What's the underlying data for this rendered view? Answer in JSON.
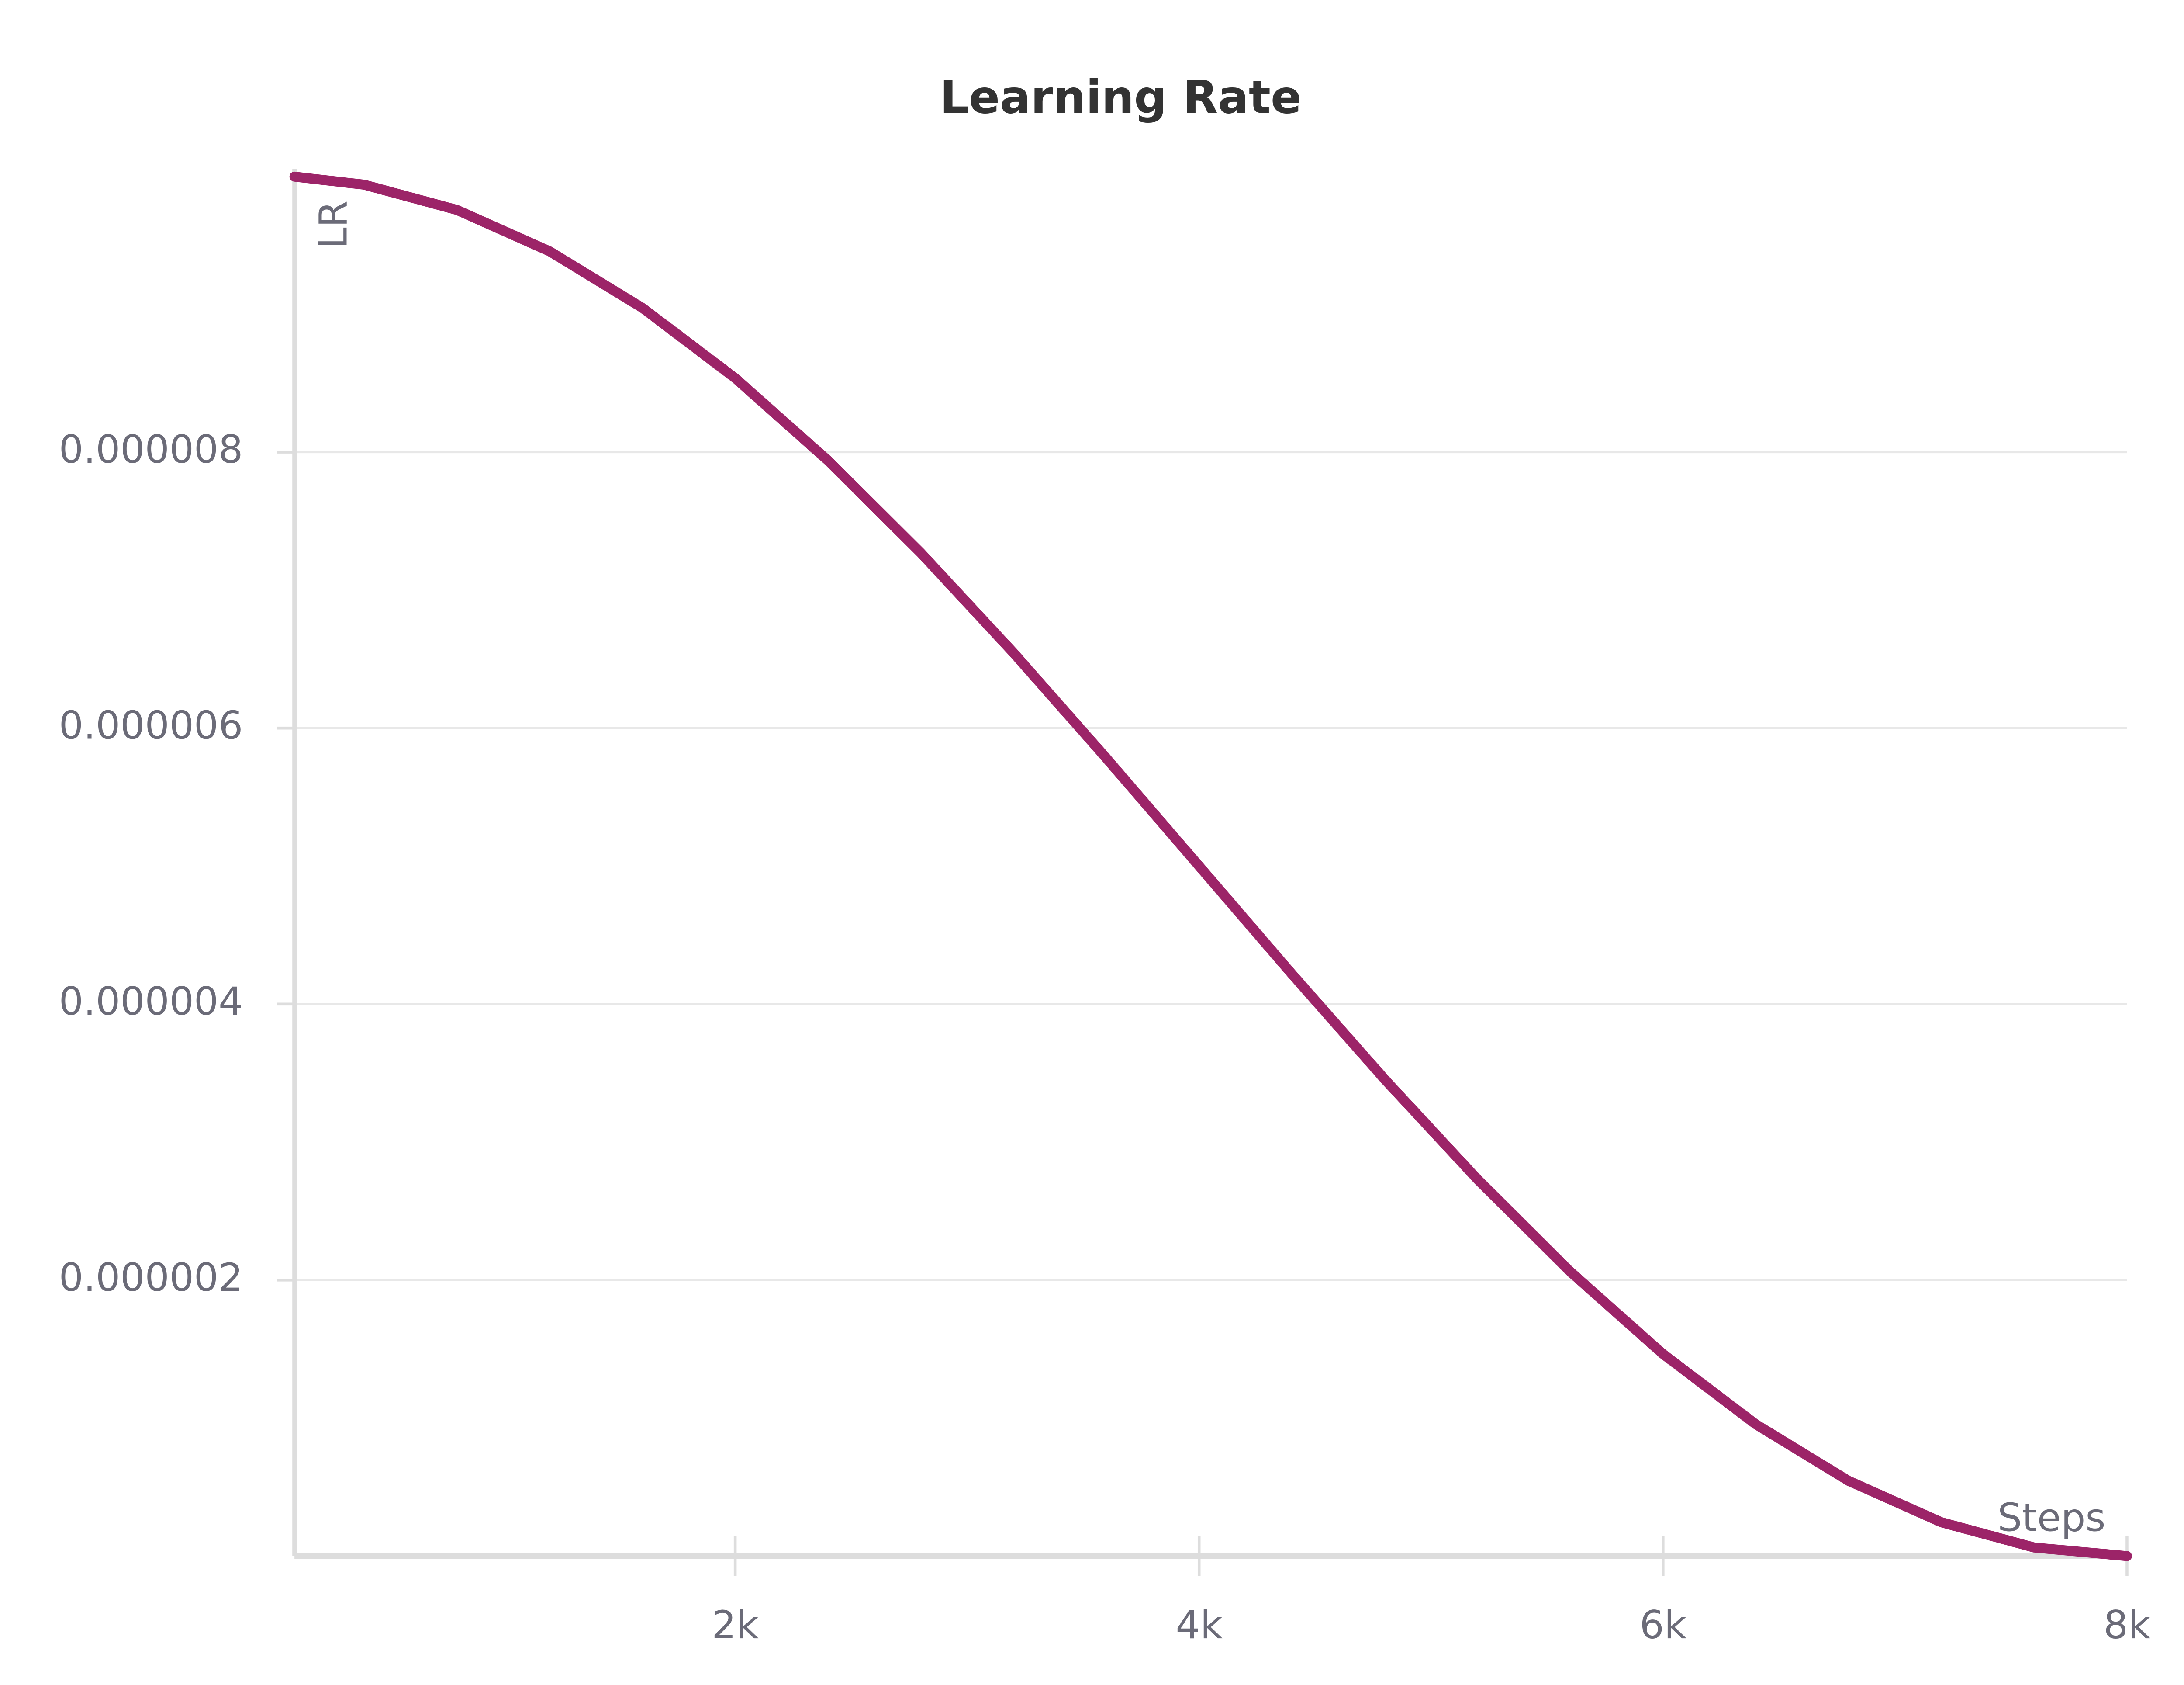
{
  "chart_data": {
    "type": "line",
    "title": "Learning Rate",
    "x_label": "Steps",
    "y_label": "LR",
    "x": [
      100,
      400,
      800,
      1200,
      1600,
      2000,
      2400,
      2800,
      3200,
      3600,
      4000,
      4400,
      4800,
      5200,
      5600,
      6000,
      6400,
      6800,
      7200,
      7600,
      8000
    ],
    "series": [
      {
        "name": "LR",
        "color": "#9c2468",
        "values": [
          9.996e-06,
          9.938e-06,
          9.755e-06,
          9.455e-06,
          9.045e-06,
          8.536e-06,
          7.939e-06,
          7.27e-06,
          6.545e-06,
          5.782e-06,
          5e-06,
          4.218e-06,
          3.455e-06,
          2.73e-06,
          2.061e-06,
          1.464e-06,
          9.55e-07,
          5.45e-07,
          2.45e-07,
          6.2e-08,
          0
        ]
      }
    ],
    "xlim": [
      100,
      8000
    ],
    "xticks": [
      {
        "value": 2000,
        "label": "2k"
      },
      {
        "value": 4000,
        "label": "4k"
      },
      {
        "value": 6000,
        "label": "6k"
      },
      {
        "value": 8000,
        "label": "8k"
      }
    ],
    "ylim": [
      0,
      1e-05
    ],
    "yticks": [
      {
        "value": 2e-06,
        "label": "0.000002"
      },
      {
        "value": 4e-06,
        "label": "0.000004"
      },
      {
        "value": 6e-06,
        "label": "0.000006"
      },
      {
        "value": 8e-06,
        "label": "0.000008"
      }
    ],
    "grid": true
  }
}
